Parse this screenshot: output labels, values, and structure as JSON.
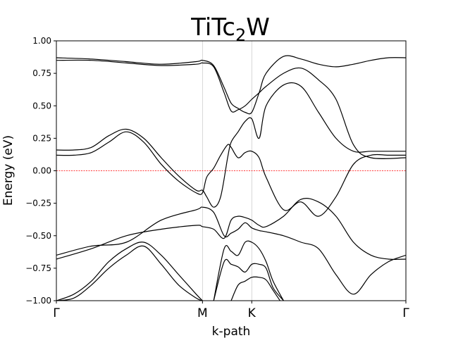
{
  "chart_data": {
    "type": "line",
    "title": {
      "main": "TiTc",
      "sub": "2",
      "tail": "W"
    },
    "xlabel": "k-path",
    "ylabel": "Energy (eV)",
    "ylim": [
      -1.0,
      1.0
    ],
    "xlim": [
      0,
      1
    ],
    "yticks": [
      1.0,
      0.75,
      0.5,
      0.25,
      0.0,
      -0.25,
      -0.5,
      -0.75,
      -1.0
    ],
    "ytick_labels": [
      "1.00",
      "0.75",
      "0.50",
      "0.25",
      "0.00",
      "−0.25",
      "−0.50",
      "−0.75",
      "−1.00"
    ],
    "xticks": [
      {
        "label": "Γ",
        "x": 0.0
      },
      {
        "label": "M",
        "x": 0.418
      },
      {
        "label": "K",
        "x": 0.559
      },
      {
        "label": "Γ",
        "x": 1.0
      }
    ],
    "vlines_at_x": [
      0.418,
      0.559
    ],
    "fermi_level": {
      "y": 0.0,
      "color": "#ff0000",
      "style": "dashed"
    },
    "grid": false,
    "line_color": "#000000",
    "series": [
      {
        "x": [
          0,
          0.05,
          0.1,
          0.15,
          0.2,
          0.25,
          0.3,
          0.35,
          0.4,
          0.418,
          0.43,
          0.45,
          0.47,
          0.49,
          0.5,
          0.52,
          0.54,
          0.559,
          0.58,
          0.6,
          0.65,
          0.7,
          0.75,
          0.8,
          0.85,
          0.9,
          0.95,
          1.0
        ],
        "values": [
          0.12,
          0.12,
          0.14,
          0.22,
          0.3,
          0.22,
          0.05,
          -0.08,
          -0.17,
          -0.17,
          -0.05,
          0.02,
          0.12,
          0.2,
          0.18,
          0.1,
          0.14,
          0.15,
          0.1,
          -0.05,
          -0.3,
          -0.24,
          -0.35,
          -0.2,
          0.05,
          0.12,
          0.12,
          0.12
        ]
      },
      {
        "x": [
          0,
          0.05,
          0.1,
          0.15,
          0.2,
          0.25,
          0.3,
          0.35,
          0.4,
          0.418,
          0.43,
          0.45,
          0.47,
          0.49,
          0.5,
          0.52,
          0.54,
          0.559,
          0.58,
          0.6,
          0.65,
          0.7,
          0.75,
          0.8,
          0.85,
          0.9,
          0.95,
          1.0
        ],
        "values": [
          0.16,
          0.16,
          0.18,
          0.27,
          0.32,
          0.25,
          0.1,
          -0.04,
          -0.15,
          -0.15,
          -0.2,
          -0.28,
          -0.2,
          0.1,
          0.22,
          0.3,
          0.38,
          0.4,
          0.25,
          0.5,
          0.66,
          0.65,
          0.45,
          0.25,
          0.15,
          0.15,
          0.15,
          0.15
        ]
      },
      {
        "x": [
          0,
          0.1,
          0.2,
          0.3,
          0.4,
          0.418,
          0.45,
          0.48,
          0.5,
          0.52,
          0.54,
          0.559,
          0.58,
          0.6,
          0.65,
          0.7,
          0.75,
          0.8,
          0.85,
          0.9,
          1.0
        ],
        "values": [
          0.85,
          0.85,
          0.83,
          0.81,
          0.82,
          0.83,
          0.8,
          0.6,
          0.46,
          0.47,
          0.5,
          0.55,
          0.6,
          0.65,
          0.75,
          0.79,
          0.7,
          0.55,
          0.2,
          0.1,
          0.1
        ]
      },
      {
        "x": [
          0,
          0.1,
          0.2,
          0.3,
          0.4,
          0.418,
          0.45,
          0.48,
          0.5,
          0.52,
          0.54,
          0.559,
          0.58,
          0.6,
          0.65,
          0.7,
          0.75,
          0.8,
          0.85,
          0.9,
          0.95,
          1.0
        ],
        "values": [
          0.87,
          0.86,
          0.84,
          0.82,
          0.84,
          0.85,
          0.81,
          0.64,
          0.52,
          0.48,
          0.45,
          0.45,
          0.6,
          0.75,
          0.88,
          0.86,
          0.82,
          0.8,
          0.82,
          0.85,
          0.87,
          0.87
        ]
      },
      {
        "x": [
          0,
          0.1,
          0.2,
          0.3,
          0.4,
          0.418,
          0.45,
          0.48,
          0.5,
          0.52,
          0.54,
          0.559,
          0.58,
          0.6,
          0.65,
          0.7,
          0.75,
          0.8,
          0.85,
          0.9,
          0.95,
          1.0
        ],
        "values": [
          -0.68,
          -0.6,
          -0.5,
          -0.45,
          -0.42,
          -0.43,
          -0.45,
          -0.52,
          -0.38,
          -0.35,
          -0.36,
          -0.38,
          -0.42,
          -0.43,
          -0.35,
          -0.22,
          -0.24,
          -0.35,
          -0.55,
          -0.65,
          -0.68,
          -0.68
        ]
      },
      {
        "x": [
          0,
          0.1,
          0.2,
          0.3,
          0.4,
          0.418,
          0.45,
          0.48,
          0.5,
          0.52,
          0.54,
          0.559,
          0.58,
          0.6,
          0.65,
          0.7,
          0.75,
          0.8,
          0.85,
          0.9,
          0.95,
          1.0
        ],
        "values": [
          -0.65,
          -0.58,
          -0.55,
          -0.38,
          -0.3,
          -0.28,
          -0.32,
          -0.5,
          -0.48,
          -0.45,
          -0.4,
          -0.44,
          -0.46,
          -0.47,
          -0.5,
          -0.55,
          -0.6,
          -0.8,
          -0.95,
          -0.8,
          -0.7,
          -0.65
        ]
      },
      {
        "x": [
          0,
          0.05,
          0.1,
          0.15,
          0.2,
          0.25,
          0.3,
          0.35,
          0.4,
          0.418
        ],
        "values": [
          -1.0,
          -0.95,
          -0.85,
          -0.7,
          -0.6,
          -0.55,
          -0.65,
          -0.8,
          -0.95,
          -1.0
        ]
      },
      {
        "x": [
          0,
          0.05,
          0.1,
          0.15,
          0.2,
          0.25,
          0.3,
          0.35,
          0.4,
          0.418
        ],
        "values": [
          -1.0,
          -0.98,
          -0.88,
          -0.75,
          -0.65,
          -0.58,
          -0.72,
          -0.88,
          -0.98,
          -1.0
        ]
      },
      {
        "x": [
          0.45,
          0.48,
          0.5,
          0.52,
          0.54,
          0.559,
          0.58,
          0.6,
          0.62,
          0.65
        ],
        "values": [
          -1.0,
          -0.6,
          -0.62,
          -0.65,
          -0.55,
          -0.55,
          -0.6,
          -0.7,
          -0.85,
          -1.0
        ]
      },
      {
        "x": [
          0.45,
          0.48,
          0.5,
          0.52,
          0.54,
          0.559,
          0.58,
          0.6,
          0.62,
          0.65
        ],
        "values": [
          -1.0,
          -0.7,
          -0.72,
          -0.74,
          -0.78,
          -0.72,
          -0.72,
          -0.75,
          -0.9,
          -1.0
        ]
      },
      {
        "x": [
          0.5,
          0.52,
          0.54,
          0.559,
          0.58,
          0.6,
          0.62,
          0.64
        ],
        "values": [
          -1.0,
          -0.88,
          -0.85,
          -0.82,
          -0.82,
          -0.84,
          -0.92,
          -1.0
        ]
      }
    ]
  }
}
